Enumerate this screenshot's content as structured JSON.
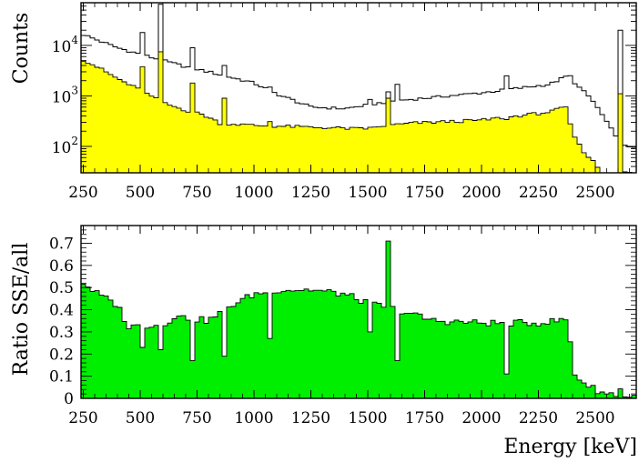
{
  "chart_data": [
    {
      "type": "histogram",
      "panel": "top",
      "ylabel": "Counts",
      "yscale": "log",
      "ylim": [
        30,
        70000
      ],
      "xlim": [
        240,
        2680
      ],
      "xticks": [
        250,
        500,
        750,
        1000,
        1250,
        1500,
        1750,
        2000,
        2250,
        2500
      ],
      "ytick_labels": [
        {
          "base": "10",
          "exp": "2",
          "value": 100
        },
        {
          "base": "10",
          "exp": "3",
          "value": 1000
        },
        {
          "base": "10",
          "exp": "4",
          "value": 10000
        }
      ],
      "continuum_all": [
        [
          240,
          17000
        ],
        [
          400,
          9000
        ],
        [
          600,
          5000
        ],
        [
          700,
          3800
        ],
        [
          800,
          3000
        ],
        [
          1000,
          1800
        ],
        [
          1100,
          1100
        ],
        [
          1250,
          600
        ],
        [
          1400,
          560
        ],
        [
          1600,
          780
        ],
        [
          1700,
          860
        ],
        [
          2000,
          1150
        ],
        [
          2300,
          1700
        ],
        [
          2385,
          2600
        ],
        [
          2420,
          1600
        ],
        [
          2480,
          900
        ],
        [
          2520,
          500
        ],
        [
          2560,
          250
        ],
        [
          2600,
          150
        ],
        [
          2630,
          100
        ],
        [
          2680,
          100
        ]
      ],
      "continuum_sse": [
        [
          240,
          5500
        ],
        [
          300,
          4000
        ],
        [
          400,
          2200
        ],
        [
          500,
          1300
        ],
        [
          600,
          720
        ],
        [
          700,
          520
        ],
        [
          780,
          420
        ],
        [
          850,
          290
        ],
        [
          1000,
          260
        ],
        [
          1250,
          240
        ],
        [
          1500,
          220
        ],
        [
          1600,
          260
        ],
        [
          1700,
          290
        ],
        [
          2000,
          330
        ],
        [
          2300,
          480
        ],
        [
          2370,
          600
        ],
        [
          2385,
          300
        ],
        [
          2420,
          120
        ],
        [
          2460,
          70
        ],
        [
          2500,
          45
        ],
        [
          2530,
          30
        ]
      ],
      "peaks": [
        {
          "e": 510,
          "all": 18000,
          "sse": 3800
        },
        {
          "e": 583,
          "all": 65000,
          "sse": 7500
        },
        {
          "e": 727,
          "all": 9000,
          "sse": 1800
        },
        {
          "e": 860,
          "all": 4000,
          "sse": 900
        },
        {
          "e": 1078,
          "all": 1500,
          "sse": 310
        },
        {
          "e": 1512,
          "all": 850,
          "sse": 240
        },
        {
          "e": 1593,
          "all": 1200,
          "sse": 900
        },
        {
          "e": 1620,
          "all": 1700,
          "sse": 280
        },
        {
          "e": 2104,
          "all": 2500,
          "sse": 340
        },
        {
          "e": 2614,
          "all": 20000,
          "sse": 1100
        }
      ],
      "colors": {
        "sse_fill": "#ffff00",
        "all_line": "#000000"
      }
    },
    {
      "type": "histogram",
      "panel": "bottom",
      "ylabel": "Ratio SSE/all",
      "xlabel": "Energy [keV]",
      "xlim": [
        240,
        2680
      ],
      "ylim": [
        0,
        0.78
      ],
      "xticks": [
        250,
        500,
        750,
        1000,
        1250,
        1500,
        1750,
        2000,
        2250,
        2500
      ],
      "yticks": [
        0,
        0.1,
        0.2,
        0.3,
        0.4,
        0.5,
        0.6,
        0.7
      ],
      "ratio_base": [
        [
          240,
          0.53
        ],
        [
          300,
          0.48
        ],
        [
          400,
          0.42
        ],
        [
          450,
          0.32
        ],
        [
          500,
          0.33
        ],
        [
          600,
          0.33
        ],
        [
          650,
          0.37
        ],
        [
          800,
          0.35
        ],
        [
          900,
          0.42
        ],
        [
          1000,
          0.47
        ],
        [
          1100,
          0.49
        ],
        [
          1250,
          0.49
        ],
        [
          1400,
          0.47
        ],
        [
          1500,
          0.43
        ],
        [
          1600,
          0.41
        ],
        [
          1700,
          0.38
        ],
        [
          1750,
          0.36
        ],
        [
          1800,
          0.35
        ],
        [
          2000,
          0.34
        ],
        [
          2250,
          0.34
        ],
        [
          2370,
          0.355
        ],
        [
          2385,
          0.32
        ],
        [
          2400,
          0.12
        ],
        [
          2450,
          0.07
        ],
        [
          2500,
          0.04
        ],
        [
          2550,
          0.02
        ],
        [
          2600,
          0.02
        ],
        [
          2620,
          0.06
        ],
        [
          2630,
          0.01
        ]
      ],
      "dips": [
        {
          "e": 510,
          "v": 0.23
        },
        {
          "e": 583,
          "v": 0.22
        },
        {
          "e": 727,
          "v": 0.17
        },
        {
          "e": 860,
          "v": 0.19
        },
        {
          "e": 1078,
          "v": 0.27
        },
        {
          "e": 1512,
          "v": 0.3
        },
        {
          "e": 1593,
          "v": 0.71
        },
        {
          "e": 1620,
          "v": 0.17
        },
        {
          "e": 2104,
          "v": 0.11
        }
      ],
      "colors": {
        "fill": "#00ee00",
        "line": "#000000"
      }
    }
  ]
}
